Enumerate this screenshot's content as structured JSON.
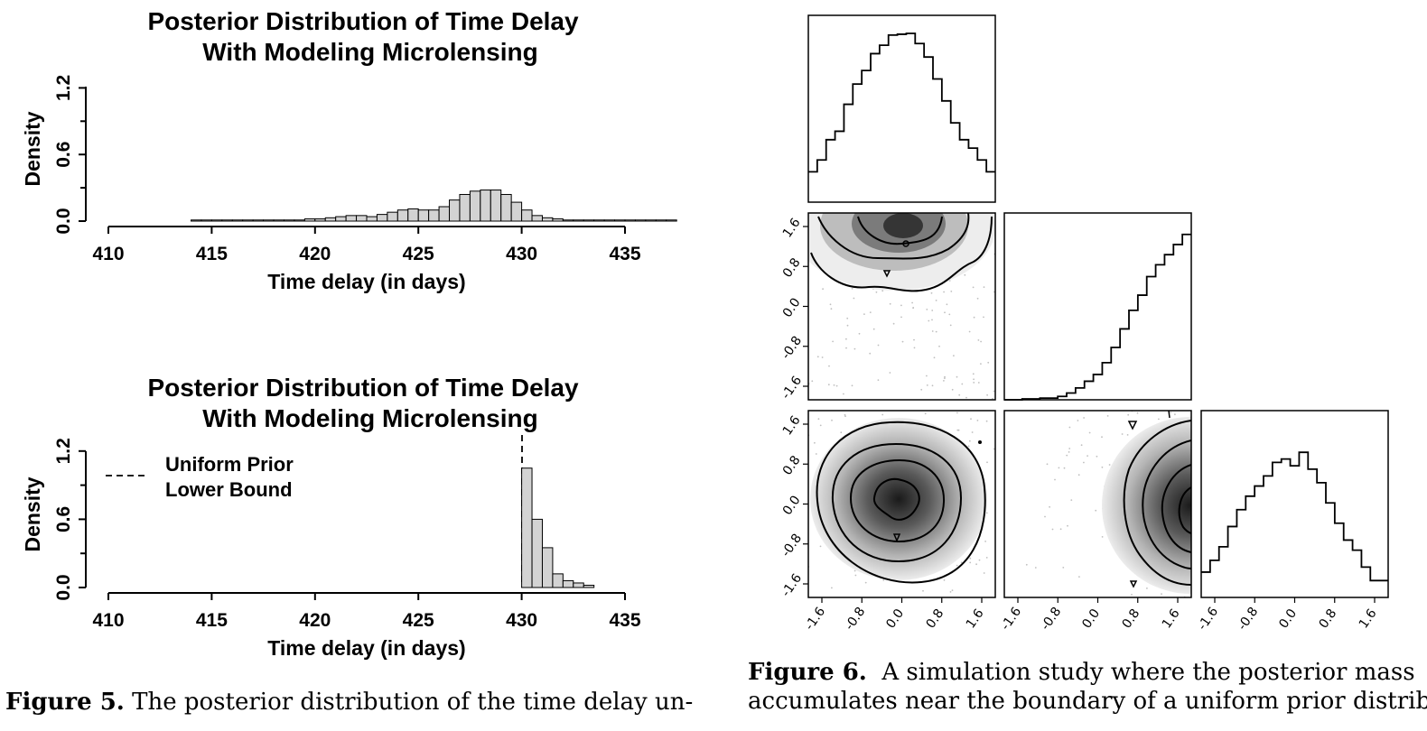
{
  "figure5": {
    "top": {
      "title_line1": "Posterior Distribution of Time Delay",
      "title_line2": "With Modeling Microlensing",
      "xlabel": "Time delay (in days)",
      "ylabel": "Density",
      "xticks": [
        "410",
        "415",
        "420",
        "425",
        "430",
        "435"
      ],
      "yticks": [
        "0.0",
        "0.6",
        "1.2"
      ]
    },
    "bottom": {
      "title_line1": "Posterior Distribution of Time Delay",
      "title_line2": "With Modeling Microlensing",
      "xlabel": "Time delay (in days)",
      "ylabel": "Density",
      "xticks": [
        "410",
        "415",
        "420",
        "425",
        "430",
        "435"
      ],
      "yticks": [
        "0.0",
        "0.6",
        "1.2"
      ],
      "legend_line1": "Uniform Prior",
      "legend_line2": "Lower Bound"
    },
    "caption_label": "Figure 5.",
    "caption_text": "The posterior distribution of the time delay un-"
  },
  "figure6": {
    "ticks": [
      "-1.6",
      "-0.8",
      "0.0",
      "0.8",
      "1.6"
    ],
    "caption_label": "Figure 6.",
    "caption_line1": "A simulation study where the posterior mass",
    "caption_line2": "accumulates near the boundary of a uniform prior distribu-"
  },
  "chart_data": [
    {
      "type": "bar",
      "title": "Posterior Distribution of Time Delay With Modeling Microlensing",
      "xlabel": "Time delay (in days)",
      "ylabel": "Density",
      "xlim": [
        410,
        435
      ],
      "ylim": [
        0,
        1.2
      ],
      "bin_start": 414,
      "bin_width": 0.5,
      "values": [
        0.01,
        0.01,
        0.01,
        0.01,
        0.01,
        0.01,
        0.01,
        0.01,
        0.01,
        0.01,
        0.01,
        0.02,
        0.02,
        0.03,
        0.04,
        0.05,
        0.05,
        0.04,
        0.06,
        0.08,
        0.1,
        0.11,
        0.1,
        0.1,
        0.13,
        0.19,
        0.24,
        0.27,
        0.28,
        0.28,
        0.24,
        0.17,
        0.1,
        0.05,
        0.03,
        0.02,
        0.01,
        0.01,
        0.01,
        0.01,
        0.01,
        0.01,
        0.01,
        0.01,
        0.01,
        0.01,
        0.01
      ]
    },
    {
      "type": "bar",
      "title": "Posterior Distribution of Time Delay With Modeling Microlensing",
      "xlabel": "Time delay (in days)",
      "ylabel": "Density",
      "xlim": [
        410,
        435
      ],
      "ylim": [
        0,
        1.2
      ],
      "bin_start": 430,
      "bin_width": 0.5,
      "values": [
        1.05,
        0.6,
        0.35,
        0.12,
        0.06,
        0.04,
        0.02
      ],
      "reference_line": {
        "x": 430,
        "label": "Uniform Prior Lower Bound"
      }
    },
    {
      "type": "histogram",
      "panel": "corner diagonal 1",
      "xlim": [
        -2,
        2
      ],
      "values": [
        0.18,
        0.25,
        0.37,
        0.42,
        0.58,
        0.7,
        0.78,
        0.88,
        0.93,
        0.99,
        0.995,
        1.0,
        0.94,
        0.86,
        0.73,
        0.6,
        0.47,
        0.37,
        0.32,
        0.25,
        0.18
      ]
    },
    {
      "type": "histogram",
      "panel": "corner diagonal 2",
      "xlim": [
        -2,
        2
      ],
      "values": [
        0,
        0,
        0.005,
        0.005,
        0.01,
        0.01,
        0.02,
        0.04,
        0.07,
        0.11,
        0.15,
        0.22,
        0.31,
        0.42,
        0.53,
        0.62,
        0.73,
        0.8,
        0.86,
        0.92,
        0.98
      ]
    },
    {
      "type": "histogram",
      "panel": "corner diagonal 3",
      "xlim": [
        -2,
        2
      ],
      "values": [
        0.15,
        0.22,
        0.3,
        0.42,
        0.52,
        0.6,
        0.66,
        0.72,
        0.8,
        0.82,
        0.78,
        0.86,
        0.76,
        0.68,
        0.56,
        0.44,
        0.34,
        0.28,
        0.18,
        0.1,
        0.1
      ]
    }
  ]
}
